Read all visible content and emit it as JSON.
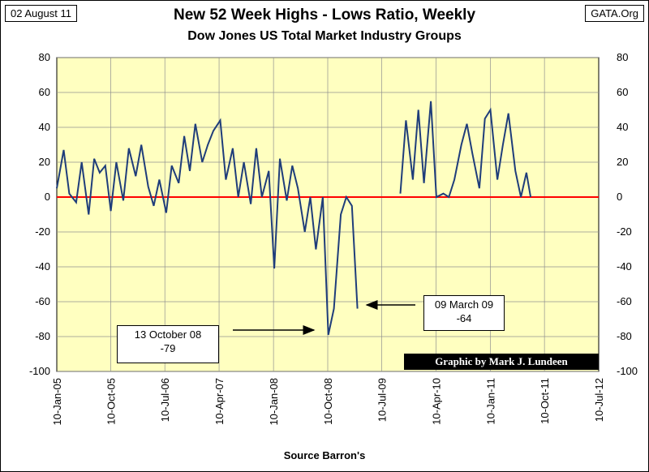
{
  "header": {
    "date": "02 August 11",
    "site": "GATA.Org",
    "title": "New 52 Week Highs - Lows Ratio, Weekly",
    "subtitle": "Dow Jones US Total Market Industry Groups"
  },
  "footer": {
    "source": "Source Barron's"
  },
  "credit": "Graphic by Mark J. Lundeen",
  "annotations": [
    {
      "line1": "13 October 08",
      "line2": "-79"
    },
    {
      "line1": "09 March 09",
      "line2": "-64"
    }
  ],
  "colors": {
    "plot_bg": "#ffffc0",
    "series": "#1f3d7a",
    "zero_line": "#ff0000",
    "grid": "#909090"
  },
  "chart_data": {
    "type": "line",
    "title": "New 52 Week Highs - Lows Ratio, Weekly",
    "subtitle": "Dow Jones US Total Market Industry Groups",
    "xlabel": "Source Barron's",
    "ylabel": "",
    "ylim": [
      -100,
      80
    ],
    "yticks": [
      80,
      60,
      40,
      20,
      0,
      -20,
      -40,
      -60,
      -80,
      -100
    ],
    "xticks": [
      "10-Jan-05",
      "10-Oct-05",
      "10-Jul-06",
      "10-Apr-07",
      "10-Jan-08",
      "10-Oct-08",
      "10-Jul-09",
      "10-Apr-10",
      "10-Jan-11",
      "10-Oct-11",
      "10-Jul-12"
    ],
    "grid": true,
    "reference_line": 0,
    "series": [
      {
        "x": [
          "2005-01-10",
          "2005-02-14",
          "2005-03-14",
          "2005-04-18",
          "2005-05-16",
          "2005-06-20",
          "2005-07-18",
          "2005-08-15",
          "2005-09-12",
          "2005-10-10",
          "2005-11-07",
          "2005-12-12",
          "2006-01-09",
          "2006-02-13",
          "2006-03-13",
          "2006-04-17",
          "2006-05-15",
          "2006-06-12",
          "2006-07-17",
          "2006-08-14",
          "2006-09-18",
          "2006-10-16",
          "2006-11-13",
          "2006-12-11",
          "2007-01-15",
          "2007-02-12",
          "2007-03-12",
          "2007-04-16",
          "2007-05-14",
          "2007-06-18",
          "2007-07-16",
          "2007-08-13",
          "2007-09-17",
          "2007-10-15",
          "2007-11-12",
          "2007-12-17",
          "2008-01-14",
          "2008-02-11",
          "2008-03-17",
          "2008-04-14",
          "2008-05-12",
          "2008-06-16",
          "2008-07-14",
          "2008-08-11",
          "2008-09-15",
          "2008-10-13",
          "2008-11-10",
          "2008-12-15",
          "2009-01-12",
          "2009-02-09",
          "2009-03-09",
          "2009-10-12",
          "2009-11-09",
          "2009-12-14",
          "2010-01-11",
          "2010-02-08",
          "2010-03-15",
          "2010-04-12",
          "2010-05-17",
          "2010-06-14",
          "2010-07-12",
          "2010-08-16",
          "2010-09-13",
          "2010-10-11",
          "2010-11-15",
          "2010-12-13",
          "2011-01-10",
          "2011-02-14",
          "2011-03-14",
          "2011-04-11",
          "2011-05-16",
          "2011-06-13",
          "2011-07-11",
          "2011-08-01"
        ],
        "y": [
          5,
          27,
          2,
          -3,
          20,
          -10,
          22,
          14,
          18,
          -8,
          20,
          -2,
          28,
          12,
          30,
          6,
          -5,
          10,
          -9,
          18,
          8,
          35,
          15,
          42,
          20,
          30,
          38,
          44,
          10,
          28,
          0,
          20,
          -4,
          28,
          0,
          15,
          -41,
          22,
          -2,
          18,
          5,
          -20,
          0,
          -30,
          0,
          -79,
          -64,
          -10,
          0,
          -5,
          -64,
          2,
          44,
          10,
          50,
          8,
          55,
          0,
          2,
          0,
          10,
          30,
          42,
          25,
          5,
          45,
          50,
          10,
          30,
          48,
          15,
          0,
          14,
          0
        ]
      }
    ],
    "annotations": [
      {
        "label": "13 October 08",
        "value": -79
      },
      {
        "label": "09 March 09",
        "value": -64
      }
    ]
  }
}
